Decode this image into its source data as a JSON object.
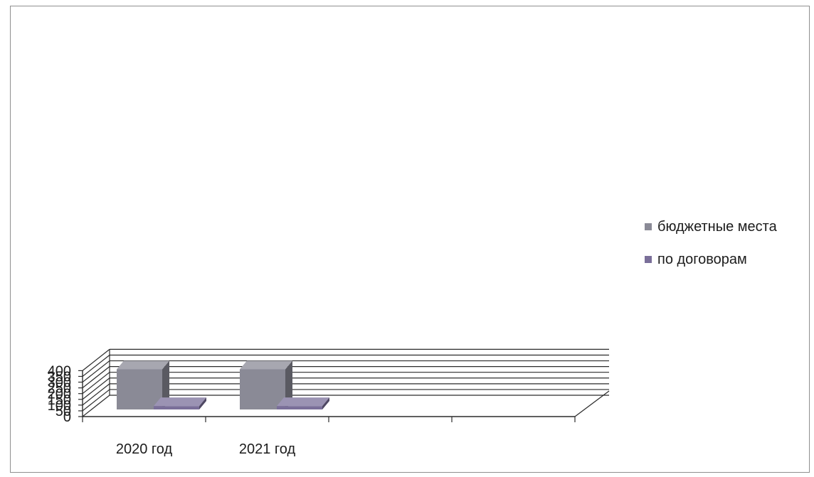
{
  "chart_data": {
    "type": "bar",
    "style": "3d-clustered-column",
    "categories": [
      "2020 год",
      "2021 год",
      "",
      ""
    ],
    "series": [
      {
        "name": "бюджетные места",
        "values": [
          350,
          350,
          null,
          null
        ],
        "color": "#8a8a96"
      },
      {
        "name": "по договорам",
        "values": [
          30,
          30,
          null,
          null
        ],
        "color": "#7a6f99"
      }
    ],
    "yticks": [
      "0",
      "50",
      "100",
      "150",
      "200",
      "250",
      "300",
      "350",
      "400"
    ],
    "ylim": [
      0,
      400
    ],
    "grid": true,
    "legend": "right",
    "title": "",
    "xlabel": "",
    "ylabel": ""
  }
}
